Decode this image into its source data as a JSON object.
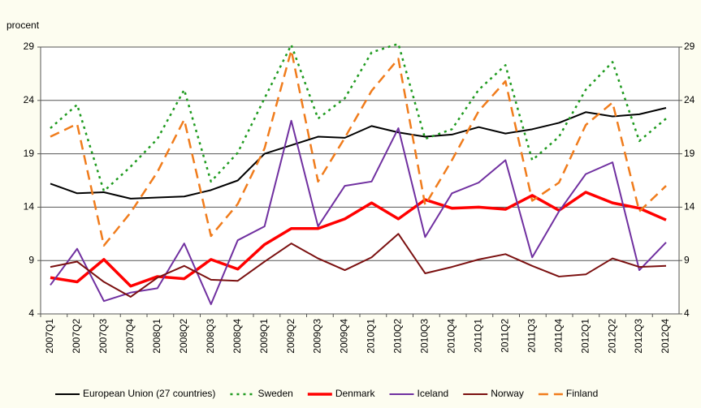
{
  "chart_data": {
    "type": "line",
    "y_axis_label": "procent",
    "categories": [
      "2007Q1",
      "2007Q2",
      "2007Q3",
      "2007Q4",
      "2008Q1",
      "2008Q2",
      "2008Q3",
      "2008Q4",
      "2009Q1",
      "2009Q2",
      "2009Q3",
      "2009Q4",
      "2010Q1",
      "2010Q2",
      "2010Q3",
      "2010Q4",
      "2011Q1",
      "2011Q2",
      "2011Q3",
      "2011Q4",
      "2012Q1",
      "2012Q2",
      "2012Q3",
      "2012Q4"
    ],
    "series": [
      {
        "name": "European Union (27 countries)",
        "color": "#000000",
        "dash": "solid",
        "width": 2,
        "values": [
          16.2,
          15.3,
          15.4,
          14.8,
          14.9,
          15.0,
          15.6,
          16.5,
          19.0,
          19.8,
          20.6,
          20.5,
          21.6,
          21.0,
          20.6,
          20.8,
          21.5,
          20.9,
          21.3,
          21.9,
          22.9,
          22.5,
          22.7,
          23.3
        ]
      },
      {
        "name": "Sweden",
        "color": "#1e9a1e",
        "dash": "dotted",
        "width": 2.5,
        "values": [
          21.4,
          23.6,
          15.5,
          17.8,
          20.4,
          25.0,
          16.4,
          19.1,
          24.2,
          29.2,
          22.3,
          24.2,
          28.5,
          29.3,
          20.4,
          21.3,
          25.0,
          27.3,
          18.4,
          20.6,
          25.0,
          27.6,
          20.2,
          22.3
        ]
      },
      {
        "name": "Denmark",
        "color": "#ff0000",
        "dash": "solid",
        "width": 3.5,
        "values": [
          7.4,
          7.0,
          9.1,
          6.6,
          7.5,
          7.3,
          9.1,
          8.2,
          10.5,
          12.0,
          12.0,
          12.9,
          14.4,
          12.9,
          14.7,
          13.9,
          14.0,
          13.8,
          15.1,
          13.7,
          15.4,
          14.4,
          13.9,
          12.8
        ]
      },
      {
        "name": "Iceland",
        "color": "#7030a0",
        "dash": "solid",
        "width": 2,
        "values": [
          6.7,
          10.1,
          5.2,
          6.0,
          6.4,
          10.6,
          4.9,
          10.9,
          12.2,
          22.1,
          12.2,
          16.0,
          16.4,
          21.4,
          11.2,
          15.3,
          16.3,
          18.4,
          9.3,
          13.6,
          17.1,
          18.2,
          8.1,
          10.7
        ]
      },
      {
        "name": "Norway",
        "color": "#7b1010",
        "dash": "solid",
        "width": 2,
        "values": [
          8.4,
          8.9,
          7.0,
          5.6,
          7.4,
          8.5,
          7.2,
          7.1,
          8.9,
          10.6,
          9.2,
          8.1,
          9.3,
          11.5,
          7.8,
          8.4,
          9.1,
          9.6,
          8.5,
          7.5,
          7.7,
          9.2,
          8.4,
          8.5
        ]
      },
      {
        "name": "Finland",
        "color": "#f07c1c",
        "dash": "dashed",
        "width": 2.5,
        "values": [
          20.6,
          21.8,
          10.4,
          13.5,
          17.3,
          22.2,
          11.3,
          14.3,
          19.5,
          28.7,
          16.4,
          20.5,
          24.9,
          27.9,
          14.2,
          18.4,
          23.0,
          25.8,
          14.6,
          16.3,
          21.7,
          23.8,
          13.6,
          16.0
        ]
      }
    ],
    "ylim": [
      4,
      29
    ],
    "yticks": [
      4,
      9,
      14,
      19,
      24,
      29
    ],
    "y2lim": [
      4,
      29
    ],
    "y2ticks": [
      4,
      9,
      14,
      19,
      24,
      29
    ],
    "grid": true,
    "legend": "bottom"
  }
}
